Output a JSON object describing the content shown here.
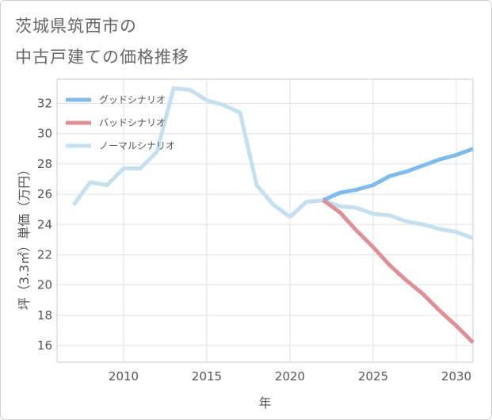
{
  "chart_data": {
    "type": "line",
    "title": [
      "茨城県筑西市の",
      "中古戸建ての価格推移"
    ],
    "xlabel": "年",
    "ylabel": "坪（3.3㎡）単価（万円）",
    "xlim": [
      2006,
      2031
    ],
    "ylim": [
      14.9,
      33.6
    ],
    "xticks": [
      2010,
      2015,
      2020,
      2025,
      2030
    ],
    "yticks": [
      16,
      18,
      20,
      22,
      24,
      26,
      28,
      30,
      32
    ],
    "grid": true,
    "legend_position": "top-left",
    "series": [
      {
        "name": "グッドシナリオ",
        "color": "#7dbcf0",
        "x": [
          2022,
          2023,
          2024,
          2025,
          2026,
          2027,
          2028,
          2029,
          2030,
          2031
        ],
        "values": [
          25.6,
          26.1,
          26.3,
          26.6,
          27.2,
          27.5,
          27.9,
          28.3,
          28.6,
          29.0
        ]
      },
      {
        "name": "バッドシナリオ",
        "color": "#e08f96",
        "x": [
          2022,
          2023,
          2024,
          2025,
          2026,
          2027,
          2028,
          2029,
          2030,
          2031
        ],
        "values": [
          25.6,
          24.8,
          23.6,
          22.5,
          21.3,
          20.3,
          19.4,
          18.3,
          17.3,
          16.2
        ]
      },
      {
        "name": "ノーマルシナリオ",
        "color": "#c4dfef",
        "x": [
          2007,
          2008,
          2009,
          2010,
          2011,
          2012,
          2013,
          2014,
          2015,
          2016,
          2017,
          2018,
          2019,
          2020,
          2021,
          2022,
          2023,
          2024,
          2025,
          2026,
          2027,
          2028,
          2029,
          2030,
          2031
        ],
        "values": [
          25.3,
          26.8,
          26.6,
          27.7,
          27.7,
          28.8,
          33.0,
          32.9,
          32.2,
          31.9,
          31.4,
          26.6,
          25.3,
          24.5,
          25.5,
          25.6,
          25.2,
          25.1,
          24.7,
          24.6,
          24.2,
          24.0,
          23.7,
          23.5,
          23.1
        ]
      }
    ]
  }
}
